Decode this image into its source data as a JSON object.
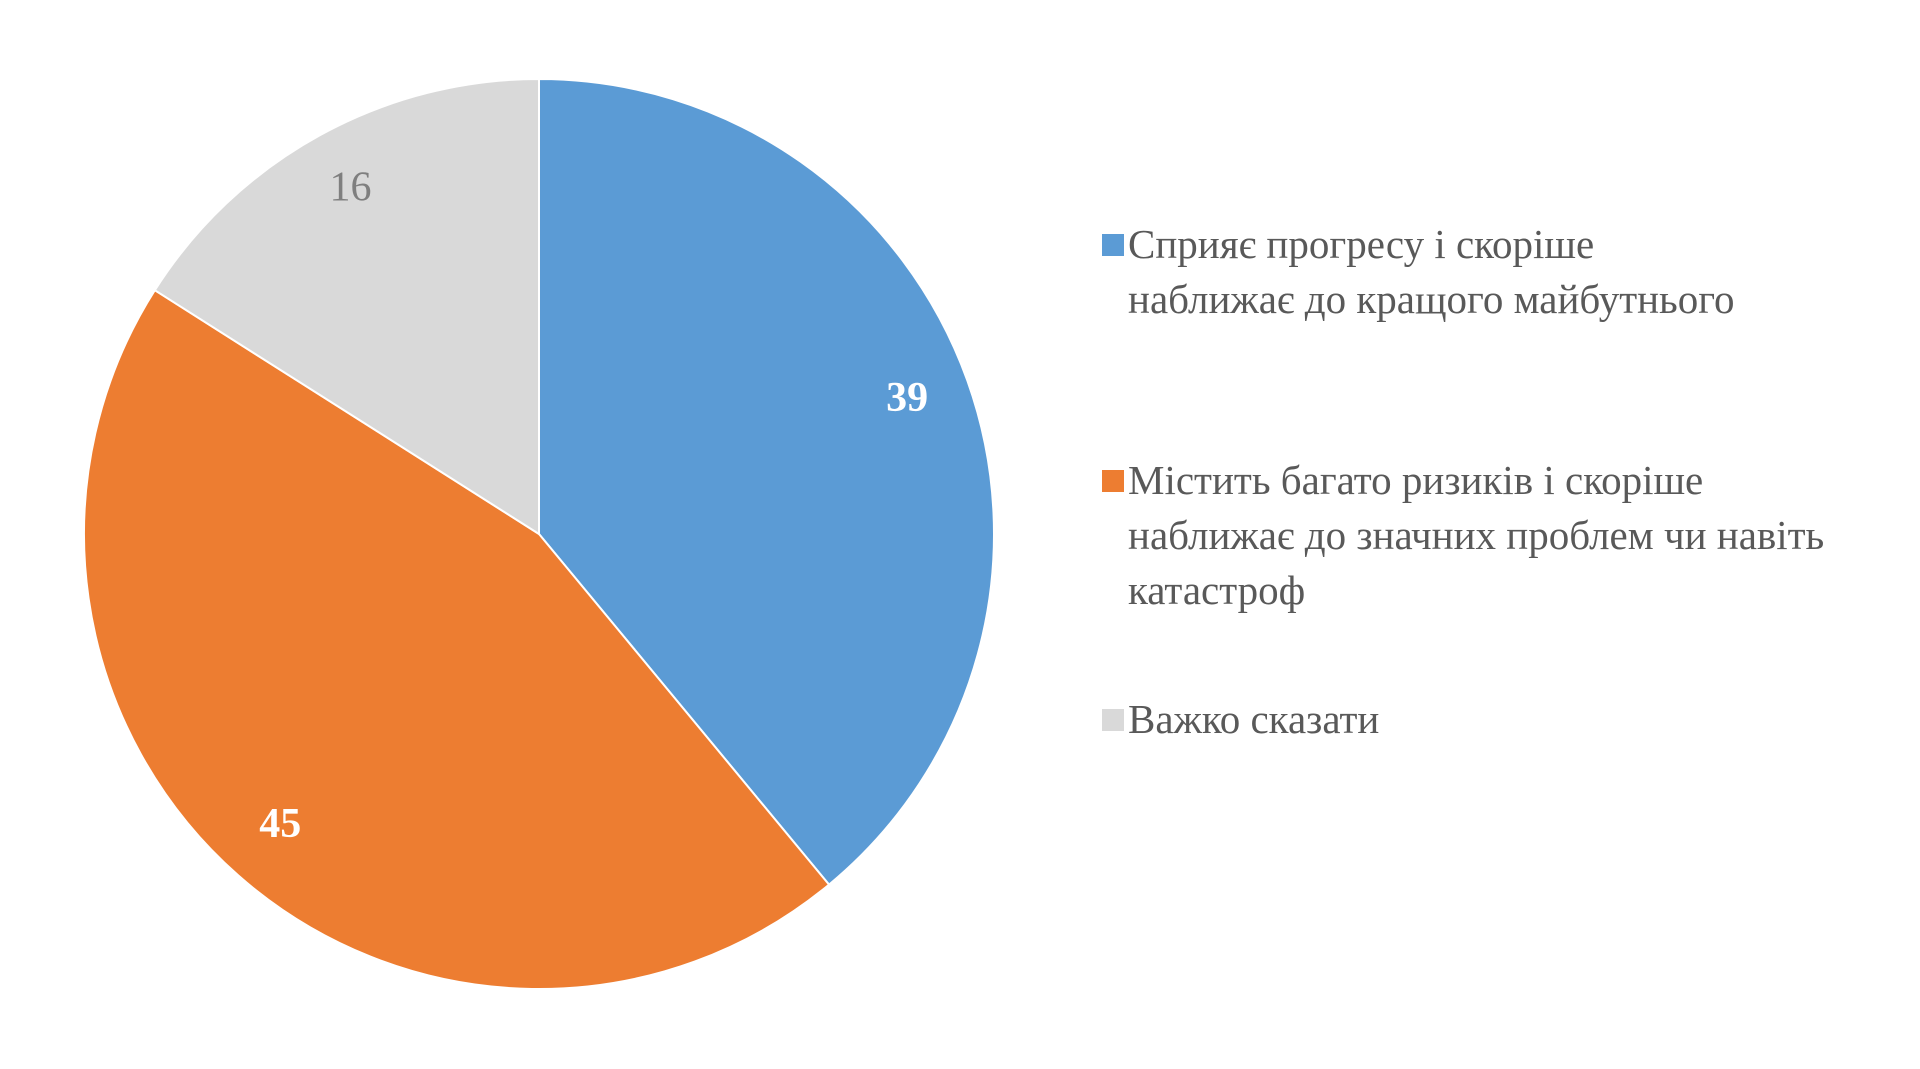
{
  "chart_data": {
    "type": "pie",
    "categories": [
      "Сприяє прогресу і скоріше наближає до кращого майбутнього",
      "Містить багато ризиків і скоріше наближає до значних проблем чи навіть катастроф",
      "Важко сказати"
    ],
    "values": [
      39,
      45,
      16
    ],
    "colors": [
      "#5b9bd5",
      "#ed7d31",
      "#d9d9d9"
    ],
    "label_colors": [
      "#ffffff",
      "#ffffff",
      "#7f7f7f"
    ],
    "legend": "right"
  }
}
